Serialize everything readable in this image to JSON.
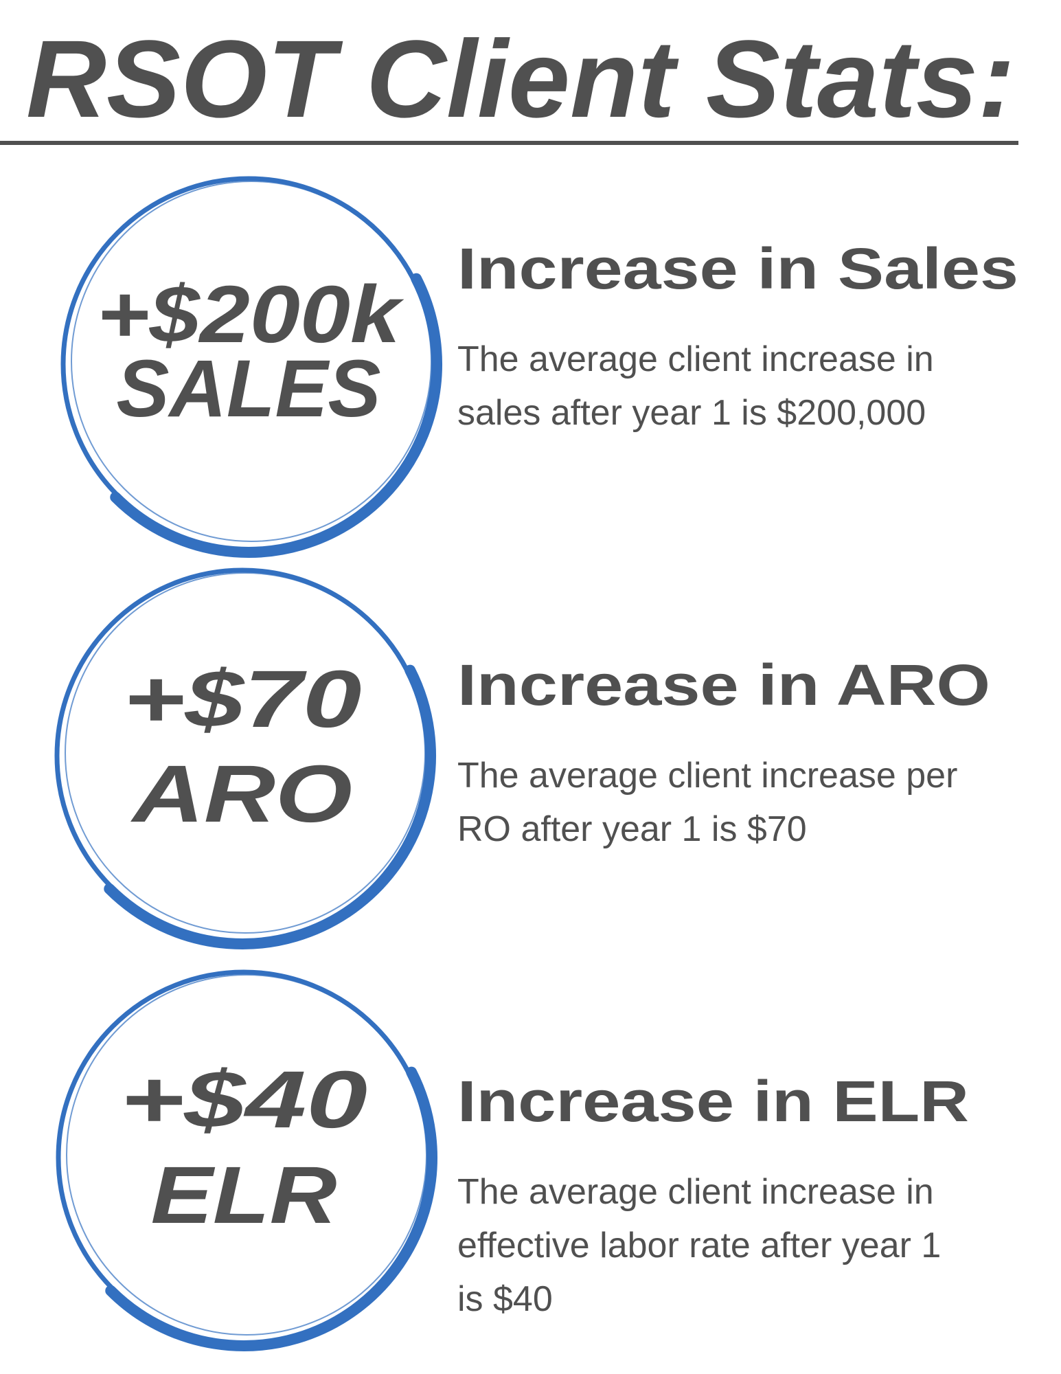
{
  "header": {
    "title": "RSOT Client Stats:"
  },
  "items": [
    {
      "value": "+$200k",
      "label": "SALES",
      "heading": "Increase in Sales",
      "description": [
        "The average client increase in",
        "sales after year 1 is $200,000"
      ]
    },
    {
      "value": "+$70",
      "label": "ARO",
      "heading": "Increase in ARO",
      "description": [
        "The average client increase per",
        "RO after year 1 is $70"
      ]
    },
    {
      "value": "+$40",
      "label": "ELR",
      "heading": "Increase in ELR",
      "description": [
        "The average client increase in",
        "effective labor rate after year 1",
        "is $40"
      ]
    }
  ]
}
